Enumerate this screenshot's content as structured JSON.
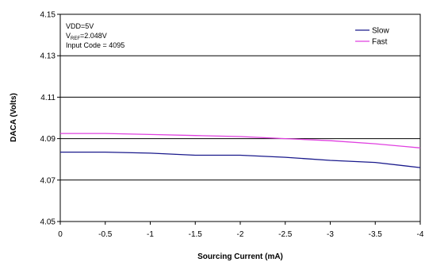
{
  "chart_data": {
    "type": "line",
    "xlabel": "Sourcing Current (mA)",
    "ylabel": "DACA (Volts)",
    "x": [
      0,
      -0.5,
      -1,
      -1.5,
      -2,
      -2.5,
      -3,
      -3.5,
      -4
    ],
    "x_tick_labels": [
      "0",
      "-0.5",
      "-1",
      "-1.5",
      "-2",
      "-2.5",
      "-3",
      "-3.5",
      "-4"
    ],
    "xlim": [
      0,
      -4
    ],
    "ylim": [
      4.05,
      4.15
    ],
    "y_ticks": [
      "4.05",
      "4.07",
      "4.09",
      "4.11",
      "4.13",
      "4.15"
    ],
    "grid": "horizontal",
    "legend_position": "top-right",
    "series": [
      {
        "name": "Slow",
        "color": "#1a1a8c",
        "values": [
          4.0835,
          4.0835,
          4.083,
          4.082,
          4.082,
          4.081,
          4.0795,
          4.0785,
          4.076
        ]
      },
      {
        "name": "Fast",
        "color": "#e040e0",
        "values": [
          4.0925,
          4.0925,
          4.092,
          4.0915,
          4.091,
          4.09,
          4.089,
          4.0875,
          4.0855
        ]
      }
    ],
    "annotation": {
      "line1": "VDD=5V",
      "line2_main": "V",
      "line2_sub": "REF",
      "line2_rest": "=2.048V",
      "line3": "Input Code = 4095"
    }
  }
}
